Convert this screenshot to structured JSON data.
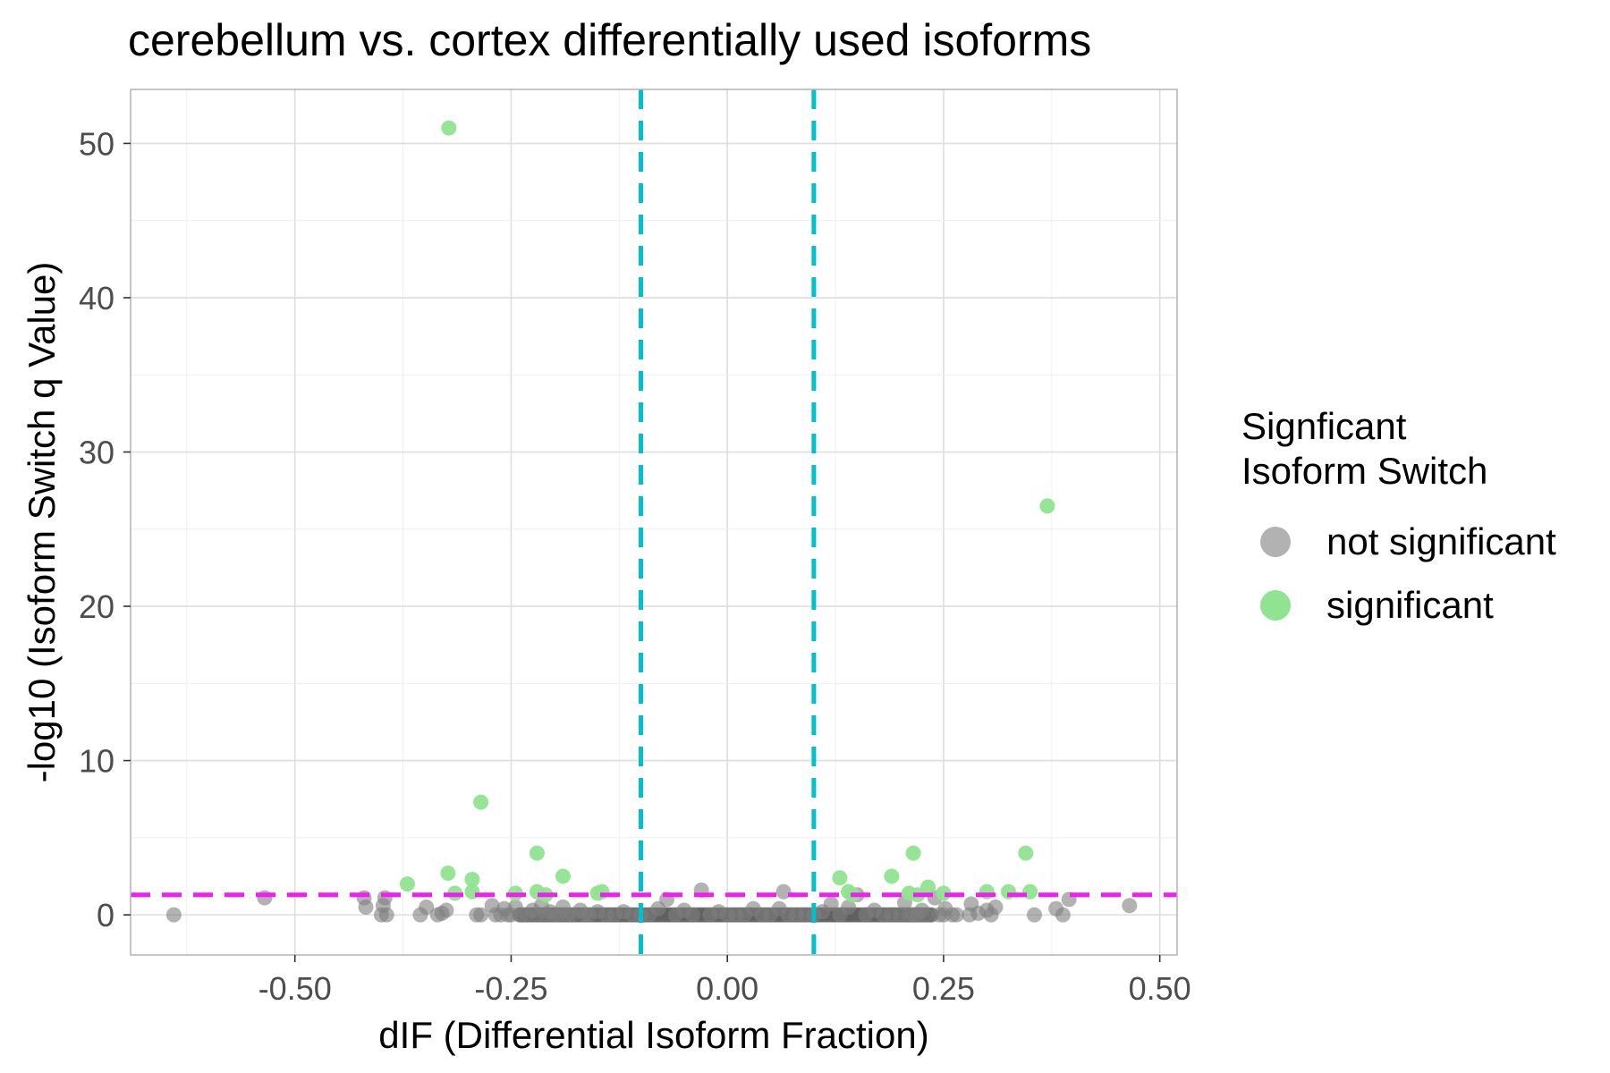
{
  "chart_data": {
    "type": "scatter",
    "title": "cerebellum vs. cortex differentially used isoforms",
    "xlabel": "dIF (Differential Isoform Fraction)",
    "ylabel": "-log10 (Isoform Switch q Value)",
    "xlim": [
      -0.69,
      0.52
    ],
    "ylim": [
      -2.6,
      53.5
    ],
    "x_ticks": [
      -0.5,
      -0.25,
      0.0,
      0.25,
      0.5
    ],
    "x_tick_labels": [
      "-0.50",
      "-0.25",
      "0.00",
      "0.25",
      "0.50"
    ],
    "y_ticks": [
      0,
      10,
      20,
      30,
      40,
      50
    ],
    "y_tick_labels": [
      "0",
      "10",
      "20",
      "30",
      "40",
      "50"
    ],
    "grid": true,
    "legend": {
      "title_lines": [
        "Signficant",
        "Isoform Switch"
      ],
      "placement": "right"
    },
    "reference_lines": {
      "horizontal_y": 1.3,
      "horizontal_color": "#f01ef0",
      "vertical_x": [
        -0.1,
        0.1
      ],
      "vertical_color": "#00c0cc"
    },
    "series": [
      {
        "name": "not significant",
        "color": "#7f7f7f",
        "points": [
          [
            -0.64,
            0.0
          ],
          [
            -0.535,
            1.1
          ],
          [
            -0.42,
            1.1
          ],
          [
            -0.418,
            0.5
          ],
          [
            -0.4,
            0.0
          ],
          [
            -0.398,
            0.6
          ],
          [
            -0.396,
            1.1
          ],
          [
            -0.394,
            0.0
          ],
          [
            -0.355,
            0.0
          ],
          [
            -0.348,
            0.5
          ],
          [
            -0.335,
            0.0
          ],
          [
            -0.33,
            0.1
          ],
          [
            -0.325,
            0.3
          ],
          [
            -0.29,
            0.0
          ],
          [
            -0.285,
            0.0
          ],
          [
            -0.272,
            0.6
          ],
          [
            -0.268,
            0.0
          ],
          [
            -0.262,
            0.0
          ],
          [
            -0.258,
            0.4
          ],
          [
            -0.254,
            0.0
          ],
          [
            -0.25,
            0.0
          ],
          [
            -0.245,
            0.5
          ],
          [
            -0.238,
            0.0
          ],
          [
            -0.232,
            0.0
          ],
          [
            -0.225,
            0.3
          ],
          [
            -0.22,
            0.0
          ],
          [
            -0.215,
            0.6
          ],
          [
            -0.21,
            0.0
          ],
          [
            -0.205,
            0.2
          ],
          [
            -0.2,
            0.0
          ],
          [
            -0.195,
            0.0
          ],
          [
            -0.19,
            0.5
          ],
          [
            -0.185,
            0.0
          ],
          [
            -0.18,
            0.0
          ],
          [
            -0.17,
            0.3
          ],
          [
            -0.165,
            0.0
          ],
          [
            -0.16,
            0.0
          ],
          [
            -0.15,
            0.2
          ],
          [
            -0.14,
            0.0
          ],
          [
            -0.13,
            0.0
          ],
          [
            -0.12,
            0.2
          ],
          [
            -0.11,
            0.0
          ],
          [
            -0.1,
            0.0
          ],
          [
            -0.09,
            0.0
          ],
          [
            -0.08,
            0.4
          ],
          [
            -0.07,
            1.0
          ],
          [
            -0.06,
            0.0
          ],
          [
            -0.05,
            0.3
          ],
          [
            -0.04,
            0.0
          ],
          [
            -0.03,
            1.6
          ],
          [
            -0.02,
            0.0
          ],
          [
            -0.01,
            0.2
          ],
          [
            0.0,
            0.0
          ],
          [
            0.01,
            0.0
          ],
          [
            0.02,
            0.0
          ],
          [
            0.03,
            0.4
          ],
          [
            0.04,
            0.0
          ],
          [
            0.05,
            0.0
          ],
          [
            0.06,
            0.4
          ],
          [
            0.065,
            1.5
          ],
          [
            0.07,
            0.0
          ],
          [
            0.08,
            0.0
          ],
          [
            0.09,
            0.0
          ],
          [
            0.1,
            0.0
          ],
          [
            0.11,
            0.2
          ],
          [
            0.12,
            0.7
          ],
          [
            0.13,
            0.0
          ],
          [
            0.14,
            0.5
          ],
          [
            0.15,
            1.3
          ],
          [
            0.16,
            0.0
          ],
          [
            0.17,
            0.3
          ],
          [
            0.18,
            0.0
          ],
          [
            0.19,
            0.0
          ],
          [
            0.2,
            0.0
          ],
          [
            0.205,
            0.8
          ],
          [
            0.21,
            0.0
          ],
          [
            0.215,
            0.0
          ],
          [
            0.22,
            0.0
          ],
          [
            0.225,
            0.3
          ],
          [
            0.23,
            0.0
          ],
          [
            0.24,
            1.1
          ],
          [
            0.245,
            0.0
          ],
          [
            0.25,
            0.0
          ],
          [
            0.252,
            0.4
          ],
          [
            0.26,
            0.0
          ],
          [
            0.265,
            0.0
          ],
          [
            0.28,
            0.0
          ],
          [
            0.282,
            0.7
          ],
          [
            0.29,
            0.1
          ],
          [
            0.3,
            0.3
          ],
          [
            0.305,
            0.0
          ],
          [
            0.31,
            0.5
          ],
          [
            0.355,
            0.0
          ],
          [
            0.38,
            0.4
          ],
          [
            0.388,
            0.0
          ],
          [
            0.395,
            1.0
          ],
          [
            0.465,
            0.6
          ]
        ]
      },
      {
        "name": "significant",
        "color": "#90e390",
        "points": [
          [
            -0.322,
            51.0
          ],
          [
            -0.285,
            7.3
          ],
          [
            -0.22,
            4.0
          ],
          [
            -0.323,
            2.7
          ],
          [
            -0.295,
            2.3
          ],
          [
            -0.37,
            2.0
          ],
          [
            -0.19,
            2.5
          ],
          [
            -0.315,
            1.4
          ],
          [
            -0.295,
            1.5
          ],
          [
            -0.245,
            1.4
          ],
          [
            -0.22,
            1.5
          ],
          [
            -0.21,
            1.3
          ],
          [
            -0.15,
            1.4
          ],
          [
            -0.145,
            1.5
          ],
          [
            0.37,
            26.5
          ],
          [
            0.215,
            4.0
          ],
          [
            0.345,
            4.0
          ],
          [
            0.13,
            2.4
          ],
          [
            0.19,
            2.5
          ],
          [
            0.14,
            1.5
          ],
          [
            0.145,
            1.3
          ],
          [
            0.21,
            1.4
          ],
          [
            0.22,
            1.3
          ],
          [
            0.232,
            1.8
          ],
          [
            0.25,
            1.4
          ],
          [
            0.3,
            1.5
          ],
          [
            0.325,
            1.5
          ],
          [
            0.35,
            1.5
          ]
        ]
      }
    ],
    "bulk": {
      "description_x_range": [
        -0.24,
        0.24
      ],
      "y": 0.0
    }
  }
}
